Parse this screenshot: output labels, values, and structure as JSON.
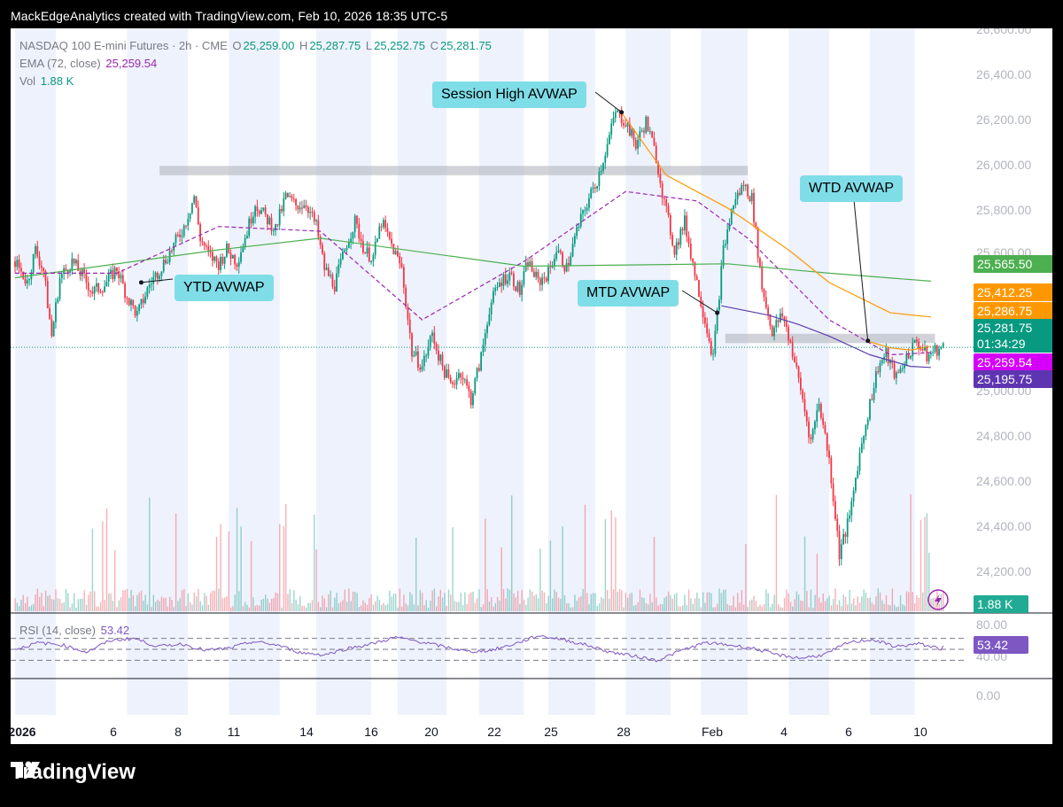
{
  "header": {
    "text": "MackEdgeAnalytics created with TradingView.com, Feb 10, 2026 18:35 UTC-5"
  },
  "legend": {
    "symbol": "NASDAQ 100 E-mini Futures · 2h · CME",
    "o_label": "O",
    "o_val": "25,259.00",
    "h_label": "H",
    "h_val": "25,287.75",
    "l_label": "L",
    "l_val": "25,252.75",
    "c_label": "C",
    "c_val": "25,281.75",
    "ema_label": "EMA (72, close)",
    "ema_val": "25,259.54",
    "vol_label": "Vol",
    "vol_val": "1.88 K",
    "rsi_label": "RSI (14, close)",
    "rsi_val": "53.42"
  },
  "callouts": {
    "session_high": "Session High AVWAP",
    "wtd": "WTD AVWAP",
    "ytd": "YTD AVWAP",
    "mtd": "MTD AVWAP"
  },
  "price_axis": [
    "26,600.00",
    "26,400.00",
    "26,200.00",
    "26,000.00",
    "25,800.00",
    "25,600.00",
    "25,000.00",
    "24,800.00",
    "24,600.00",
    "24,400.00",
    "24,200.00"
  ],
  "rsi_axis": [
    "80.00",
    "40.00",
    "0.00"
  ],
  "price_tags": {
    "ytd": "25,565.50",
    "session": "25,412.25",
    "wtd": "25,286.75",
    "last": "25,281.75",
    "countdown": "01:34:29",
    "ema": "25,259.54",
    "mtd": "25,195.75",
    "vol": "1.88 K",
    "rsi": "53.42"
  },
  "date_axis": [
    "2026",
    "6",
    "8",
    "11",
    "14",
    "16",
    "20",
    "22",
    "25",
    "28",
    "Feb",
    "4",
    "6",
    "10"
  ],
  "footer": {
    "brand": "TradingView"
  },
  "colors": {
    "up": "#089981",
    "down": "#f23645",
    "ytd": "#4caf50",
    "session": "#ff9800",
    "ema": "#9c27b0",
    "mtd": "#5b3fa8",
    "rsi": "#7e57c2",
    "callout": "#7fdde8"
  },
  "chart_data": {
    "type": "candlestick",
    "symbol": "NASDAQ 100 E-mini Futures",
    "interval": "2h",
    "ylim": [
      24150,
      26650
    ],
    "last_close": 25281.75,
    "close_path": [
      [
        0,
        25650
      ],
      [
        6,
        25560
      ],
      [
        10,
        25700
      ],
      [
        14,
        25610
      ],
      [
        18,
        25330
      ],
      [
        22,
        25580
      ],
      [
        28,
        25650
      ],
      [
        33,
        25590
      ],
      [
        38,
        25520
      ],
      [
        44,
        25550
      ],
      [
        50,
        25620
      ],
      [
        55,
        25500
      ],
      [
        60,
        25420
      ],
      [
        66,
        25550
      ],
      [
        72,
        25630
      ],
      [
        78,
        25720
      ],
      [
        83,
        25800
      ],
      [
        88,
        25930
      ],
      [
        91,
        25750
      ],
      [
        95,
        25680
      ],
      [
        100,
        25640
      ],
      [
        104,
        25700
      ],
      [
        109,
        25650
      ],
      [
        114,
        25780
      ],
      [
        118,
        25900
      ],
      [
        123,
        25840
      ],
      [
        128,
        25790
      ],
      [
        133,
        25930
      ],
      [
        138,
        25890
      ],
      [
        143,
        25900
      ],
      [
        148,
        25800
      ],
      [
        152,
        25620
      ],
      [
        157,
        25550
      ],
      [
        163,
        25730
      ],
      [
        167,
        25820
      ],
      [
        172,
        25690
      ],
      [
        176,
        25670
      ],
      [
        180,
        25820
      ],
      [
        186,
        25700
      ],
      [
        190,
        25620
      ],
      [
        195,
        25260
      ],
      [
        200,
        25200
      ],
      [
        205,
        25340
      ],
      [
        209,
        25220
      ],
      [
        214,
        25120
      ],
      [
        219,
        25180
      ],
      [
        224,
        25060
      ],
      [
        229,
        25240
      ],
      [
        233,
        25450
      ],
      [
        238,
        25560
      ],
      [
        243,
        25600
      ],
      [
        248,
        25520
      ],
      [
        252,
        25650
      ],
      [
        257,
        25560
      ],
      [
        262,
        25600
      ],
      [
        266,
        25700
      ],
      [
        271,
        25620
      ],
      [
        276,
        25780
      ],
      [
        281,
        25900
      ],
      [
        286,
        26000
      ],
      [
        291,
        26150
      ],
      [
        295,
        26290
      ],
      [
        300,
        26250
      ],
      [
        305,
        26150
      ],
      [
        310,
        26250
      ],
      [
        315,
        26100
      ],
      [
        319,
        25900
      ],
      [
        324,
        25700
      ],
      [
        329,
        25820
      ],
      [
        334,
        25600
      ],
      [
        338,
        25440
      ],
      [
        343,
        25240
      ],
      [
        348,
        25700
      ],
      [
        353,
        25900
      ],
      [
        358,
        25980
      ],
      [
        362,
        25920
      ],
      [
        367,
        25540
      ],
      [
        372,
        25350
      ],
      [
        377,
        25420
      ],
      [
        381,
        25300
      ],
      [
        386,
        25100
      ],
      [
        391,
        24880
      ],
      [
        395,
        25050
      ],
      [
        400,
        24800
      ],
      [
        405,
        24400
      ],
      [
        410,
        24550
      ],
      [
        414,
        24780
      ],
      [
        419,
        25000
      ],
      [
        424,
        25200
      ],
      [
        428,
        25250
      ],
      [
        433,
        25150
      ],
      [
        438,
        25240
      ],
      [
        443,
        25310
      ],
      [
        448,
        25240
      ],
      [
        452,
        25270
      ],
      [
        457,
        25282
      ]
    ],
    "ytd_avwap": [
      [
        0,
        25580
      ],
      [
        100,
        25700
      ],
      [
        150,
        25750
      ],
      [
        250,
        25630
      ],
      [
        350,
        25640
      ],
      [
        400,
        25600
      ],
      [
        450,
        25565.5
      ]
    ],
    "session_high_avwap": [
      [
        297,
        26300
      ],
      [
        320,
        26020
      ],
      [
        350,
        25880
      ],
      [
        380,
        25700
      ],
      [
        400,
        25560
      ],
      [
        430,
        25430
      ],
      [
        450,
        25412.25
      ]
    ],
    "mtd_avwap": [
      [
        347,
        25460
      ],
      [
        370,
        25420
      ],
      [
        385,
        25380
      ],
      [
        400,
        25330
      ],
      [
        420,
        25250
      ],
      [
        440,
        25200
      ],
      [
        450,
        25195.75
      ]
    ],
    "wtd_avwap": [
      [
        418,
        25310
      ],
      [
        430,
        25280
      ],
      [
        440,
        25270
      ],
      [
        450,
        25286.75
      ]
    ],
    "ema_72": [
      [
        0,
        25600
      ],
      [
        50,
        25600
      ],
      [
        100,
        25800
      ],
      [
        150,
        25780
      ],
      [
        200,
        25400
      ],
      [
        250,
        25650
      ],
      [
        300,
        25950
      ],
      [
        335,
        25910
      ],
      [
        360,
        25750
      ],
      [
        400,
        25400
      ],
      [
        430,
        25250
      ],
      [
        450,
        25259.54
      ]
    ],
    "resistance_zone": [
      26020,
      26060
    ],
    "support_zone": [
      25300,
      25340
    ],
    "rsi": {
      "ylim": [
        0,
        100
      ],
      "levels": [
        70,
        50,
        30
      ],
      "last": 53.42,
      "values": [
        50,
        62,
        58,
        45,
        66,
        70,
        55,
        60,
        48,
        52,
        64,
        58,
        44,
        40,
        52,
        60,
        72,
        64,
        55,
        46,
        48,
        60,
        75,
        68,
        58,
        45,
        38,
        30,
        48,
        62,
        58,
        52,
        40,
        34,
        40,
        62,
        68,
        55,
        60,
        50
      ]
    },
    "volume_last": "1.88 K"
  }
}
